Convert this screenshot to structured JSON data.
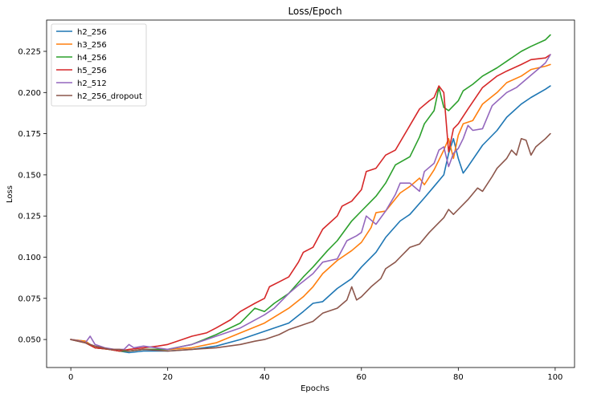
{
  "chart_data": {
    "type": "line",
    "title": "Loss/Epoch",
    "xlabel": "Epochs",
    "ylabel": "Loss",
    "xlim": [
      -5,
      104
    ],
    "ylim": [
      0.033,
      0.244
    ],
    "xticks": [
      0,
      20,
      40,
      60,
      80,
      100
    ],
    "yticks": [
      0.05,
      0.075,
      0.1,
      0.125,
      0.15,
      0.175,
      0.2,
      0.225
    ],
    "ytick_labels": [
      "0.050",
      "0.075",
      "0.100",
      "0.125",
      "0.150",
      "0.175",
      "0.200",
      "0.225"
    ],
    "grid": false,
    "legend_position": "top-left",
    "series": [
      {
        "name": "h2_256",
        "color": "#1f77b4",
        "points": [
          [
            0,
            0.05
          ],
          [
            3,
            0.049
          ],
          [
            5,
            0.045
          ],
          [
            8,
            0.044
          ],
          [
            10,
            0.043
          ],
          [
            12,
            0.042
          ],
          [
            15,
            0.043
          ],
          [
            20,
            0.043
          ],
          [
            25,
            0.044
          ],
          [
            30,
            0.046
          ],
          [
            35,
            0.05
          ],
          [
            40,
            0.055
          ],
          [
            45,
            0.06
          ],
          [
            48,
            0.067
          ],
          [
            50,
            0.072
          ],
          [
            52,
            0.073
          ],
          [
            55,
            0.081
          ],
          [
            58,
            0.087
          ],
          [
            60,
            0.094
          ],
          [
            63,
            0.103
          ],
          [
            65,
            0.112
          ],
          [
            68,
            0.122
          ],
          [
            70,
            0.126
          ],
          [
            73,
            0.136
          ],
          [
            75,
            0.143
          ],
          [
            77,
            0.15
          ],
          [
            78,
            0.163
          ],
          [
            79,
            0.172
          ],
          [
            80,
            0.16
          ],
          [
            81,
            0.151
          ],
          [
            82,
            0.155
          ],
          [
            85,
            0.168
          ],
          [
            88,
            0.177
          ],
          [
            90,
            0.185
          ],
          [
            93,
            0.193
          ],
          [
            95,
            0.197
          ],
          [
            98,
            0.202
          ],
          [
            99,
            0.204
          ]
        ]
      },
      {
        "name": "h3_256",
        "color": "#ff7f0e",
        "points": [
          [
            0,
            0.05
          ],
          [
            3,
            0.049
          ],
          [
            5,
            0.045
          ],
          [
            8,
            0.044
          ],
          [
            10,
            0.043
          ],
          [
            12,
            0.043
          ],
          [
            15,
            0.044
          ],
          [
            20,
            0.044
          ],
          [
            25,
            0.045
          ],
          [
            30,
            0.048
          ],
          [
            35,
            0.054
          ],
          [
            40,
            0.06
          ],
          [
            45,
            0.069
          ],
          [
            48,
            0.076
          ],
          [
            50,
            0.082
          ],
          [
            52,
            0.09
          ],
          [
            55,
            0.098
          ],
          [
            58,
            0.104
          ],
          [
            60,
            0.109
          ],
          [
            62,
            0.118
          ],
          [
            63,
            0.127
          ],
          [
            65,
            0.128
          ],
          [
            68,
            0.139
          ],
          [
            70,
            0.143
          ],
          [
            72,
            0.148
          ],
          [
            73,
            0.144
          ],
          [
            75,
            0.153
          ],
          [
            77,
            0.165
          ],
          [
            78,
            0.172
          ],
          [
            79,
            0.16
          ],
          [
            80,
            0.174
          ],
          [
            81,
            0.181
          ],
          [
            83,
            0.183
          ],
          [
            85,
            0.193
          ],
          [
            88,
            0.2
          ],
          [
            90,
            0.206
          ],
          [
            93,
            0.21
          ],
          [
            95,
            0.214
          ],
          [
            98,
            0.216
          ],
          [
            99,
            0.217
          ]
        ]
      },
      {
        "name": "h4_256",
        "color": "#2ca02c",
        "points": [
          [
            0,
            0.05
          ],
          [
            3,
            0.048
          ],
          [
            5,
            0.045
          ],
          [
            8,
            0.044
          ],
          [
            10,
            0.043
          ],
          [
            12,
            0.043
          ],
          [
            15,
            0.044
          ],
          [
            20,
            0.044
          ],
          [
            25,
            0.047
          ],
          [
            30,
            0.053
          ],
          [
            35,
            0.06
          ],
          [
            38,
            0.069
          ],
          [
            40,
            0.067
          ],
          [
            42,
            0.072
          ],
          [
            45,
            0.078
          ],
          [
            48,
            0.088
          ],
          [
            50,
            0.094
          ],
          [
            53,
            0.104
          ],
          [
            55,
            0.11
          ],
          [
            58,
            0.122
          ],
          [
            60,
            0.128
          ],
          [
            63,
            0.137
          ],
          [
            65,
            0.145
          ],
          [
            67,
            0.156
          ],
          [
            70,
            0.161
          ],
          [
            72,
            0.173
          ],
          [
            73,
            0.181
          ],
          [
            75,
            0.189
          ],
          [
            76,
            0.203
          ],
          [
            77,
            0.191
          ],
          [
            78,
            0.189
          ],
          [
            80,
            0.195
          ],
          [
            81,
            0.201
          ],
          [
            83,
            0.205
          ],
          [
            85,
            0.21
          ],
          [
            88,
            0.215
          ],
          [
            90,
            0.219
          ],
          [
            93,
            0.225
          ],
          [
            95,
            0.228
          ],
          [
            98,
            0.232
          ],
          [
            99,
            0.235
          ]
        ]
      },
      {
        "name": "h5_256",
        "color": "#d62728",
        "points": [
          [
            0,
            0.05
          ],
          [
            3,
            0.048
          ],
          [
            5,
            0.045
          ],
          [
            8,
            0.044
          ],
          [
            10,
            0.043
          ],
          [
            12,
            0.044
          ],
          [
            15,
            0.045
          ],
          [
            18,
            0.046
          ],
          [
            20,
            0.047
          ],
          [
            23,
            0.05
          ],
          [
            25,
            0.052
          ],
          [
            28,
            0.054
          ],
          [
            30,
            0.057
          ],
          [
            33,
            0.062
          ],
          [
            35,
            0.067
          ],
          [
            38,
            0.072
          ],
          [
            40,
            0.075
          ],
          [
            41,
            0.082
          ],
          [
            43,
            0.085
          ],
          [
            45,
            0.088
          ],
          [
            47,
            0.097
          ],
          [
            48,
            0.103
          ],
          [
            50,
            0.106
          ],
          [
            52,
            0.117
          ],
          [
            55,
            0.125
          ],
          [
            56,
            0.131
          ],
          [
            58,
            0.134
          ],
          [
            60,
            0.141
          ],
          [
            61,
            0.152
          ],
          [
            63,
            0.154
          ],
          [
            65,
            0.162
          ],
          [
            67,
            0.165
          ],
          [
            70,
            0.18
          ],
          [
            72,
            0.19
          ],
          [
            74,
            0.195
          ],
          [
            75,
            0.197
          ],
          [
            76,
            0.204
          ],
          [
            77,
            0.2
          ],
          [
            78,
            0.164
          ],
          [
            79,
            0.178
          ],
          [
            80,
            0.181
          ],
          [
            82,
            0.19
          ],
          [
            85,
            0.203
          ],
          [
            88,
            0.21
          ],
          [
            90,
            0.213
          ],
          [
            93,
            0.217
          ],
          [
            95,
            0.22
          ],
          [
            98,
            0.221
          ],
          [
            99,
            0.223
          ]
        ]
      },
      {
        "name": "h2_512",
        "color": "#9467bd",
        "points": [
          [
            0,
            0.05
          ],
          [
            2,
            0.049
          ],
          [
            3,
            0.048
          ],
          [
            4,
            0.052
          ],
          [
            5,
            0.047
          ],
          [
            7,
            0.045
          ],
          [
            9,
            0.044
          ],
          [
            11,
            0.044
          ],
          [
            12,
            0.047
          ],
          [
            13,
            0.045
          ],
          [
            15,
            0.046
          ],
          [
            20,
            0.044
          ],
          [
            25,
            0.047
          ],
          [
            30,
            0.052
          ],
          [
            35,
            0.057
          ],
          [
            40,
            0.065
          ],
          [
            42,
            0.069
          ],
          [
            45,
            0.078
          ],
          [
            47,
            0.083
          ],
          [
            50,
            0.09
          ],
          [
            52,
            0.097
          ],
          [
            55,
            0.099
          ],
          [
            57,
            0.11
          ],
          [
            59,
            0.113
          ],
          [
            60,
            0.115
          ],
          [
            61,
            0.125
          ],
          [
            63,
            0.12
          ],
          [
            65,
            0.128
          ],
          [
            67,
            0.138
          ],
          [
            68,
            0.145
          ],
          [
            70,
            0.145
          ],
          [
            72,
            0.14
          ],
          [
            73,
            0.152
          ],
          [
            75,
            0.157
          ],
          [
            76,
            0.165
          ],
          [
            77,
            0.167
          ],
          [
            78,
            0.155
          ],
          [
            79,
            0.163
          ],
          [
            80,
            0.166
          ],
          [
            81,
            0.172
          ],
          [
            82,
            0.18
          ],
          [
            83,
            0.177
          ],
          [
            85,
            0.178
          ],
          [
            87,
            0.192
          ],
          [
            90,
            0.2
          ],
          [
            92,
            0.203
          ],
          [
            94,
            0.208
          ],
          [
            96,
            0.213
          ],
          [
            98,
            0.218
          ],
          [
            99,
            0.223
          ]
        ]
      },
      {
        "name": "h2_256_dropout",
        "color": "#8c564b",
        "points": [
          [
            0,
            0.05
          ],
          [
            3,
            0.048
          ],
          [
            5,
            0.046
          ],
          [
            8,
            0.044
          ],
          [
            10,
            0.044
          ],
          [
            12,
            0.043
          ],
          [
            15,
            0.044
          ],
          [
            20,
            0.043
          ],
          [
            25,
            0.044
          ],
          [
            30,
            0.045
          ],
          [
            35,
            0.047
          ],
          [
            38,
            0.049
          ],
          [
            40,
            0.05
          ],
          [
            43,
            0.053
          ],
          [
            45,
            0.056
          ],
          [
            47,
            0.058
          ],
          [
            50,
            0.061
          ],
          [
            52,
            0.066
          ],
          [
            55,
            0.069
          ],
          [
            57,
            0.074
          ],
          [
            58,
            0.082
          ],
          [
            59,
            0.074
          ],
          [
            60,
            0.076
          ],
          [
            62,
            0.082
          ],
          [
            64,
            0.087
          ],
          [
            65,
            0.093
          ],
          [
            67,
            0.097
          ],
          [
            68,
            0.1
          ],
          [
            70,
            0.106
          ],
          [
            72,
            0.108
          ],
          [
            74,
            0.115
          ],
          [
            76,
            0.121
          ],
          [
            77,
            0.124
          ],
          [
            78,
            0.129
          ],
          [
            79,
            0.126
          ],
          [
            80,
            0.129
          ],
          [
            82,
            0.135
          ],
          [
            84,
            0.142
          ],
          [
            85,
            0.14
          ],
          [
            87,
            0.149
          ],
          [
            88,
            0.154
          ],
          [
            90,
            0.16
          ],
          [
            91,
            0.165
          ],
          [
            92,
            0.162
          ],
          [
            93,
            0.172
          ],
          [
            94,
            0.171
          ],
          [
            95,
            0.162
          ],
          [
            96,
            0.167
          ],
          [
            98,
            0.172
          ],
          [
            99,
            0.175
          ]
        ]
      }
    ]
  }
}
